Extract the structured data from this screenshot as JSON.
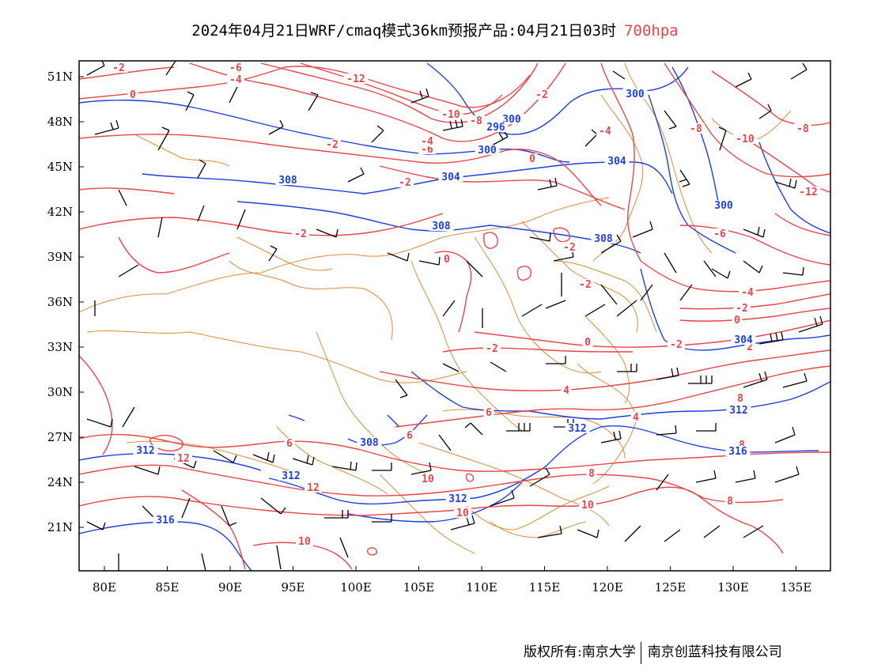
{
  "title": {
    "main": "2024年04月21日WRF/cmaq模式36km预报产品:04月21日03时",
    "level": "700hpa"
  },
  "footer": {
    "left": "版权所有:南京大学",
    "right": "南京创蓝科技有限公司"
  },
  "axes": {
    "lat_ticks": [
      "51N",
      "48N",
      "45N",
      "42N",
      "39N",
      "36N",
      "33N",
      "30N",
      "27N",
      "24N",
      "21N"
    ],
    "lon_ticks": [
      "80E",
      "85E",
      "90E",
      "95E",
      "100E",
      "105E",
      "110E",
      "115E",
      "120E",
      "125E",
      "130E",
      "135E"
    ]
  },
  "colors": {
    "temperature": "#e8454a",
    "height": "#1f3fe0",
    "boundary": "#d98c3a",
    "wind": "#000000"
  },
  "temperature_labels": [
    "-2",
    "-6",
    "-4",
    "-12",
    "0",
    "-2",
    "-10",
    "-8",
    "-2",
    "-6",
    "-4",
    "0",
    "-2",
    "-4",
    "-8",
    "-10",
    "-8",
    "-12",
    "-6",
    "-2",
    "0",
    "-2",
    "-2",
    "-4",
    "-2",
    "0",
    "-2",
    "2",
    "0",
    "-2",
    "4",
    "6",
    "4",
    "6",
    "8",
    "6",
    "8",
    "12",
    "8",
    "10",
    "12",
    "10",
    "10",
    "8",
    "10"
  ],
  "height_labels": [
    "300",
    "300",
    "296",
    "300",
    "304",
    "304",
    "308",
    "300",
    "308",
    "308",
    "304",
    "312",
    "312",
    "312",
    "308",
    "316",
    "316",
    "312",
    "312"
  ]
}
